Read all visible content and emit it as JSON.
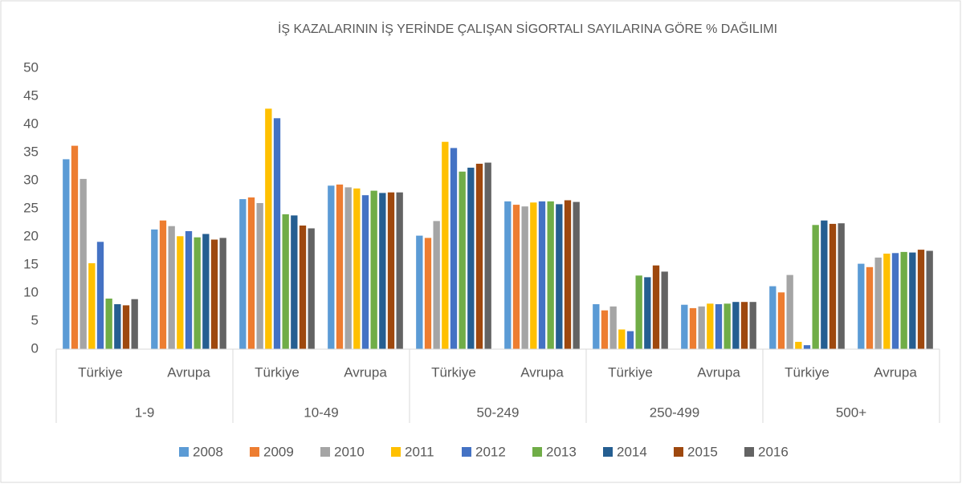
{
  "chart_data": {
    "type": "bar",
    "title": "İŞ KAZALARININ İŞ YERİNDE ÇALIŞAN SİGORTALI SAYILARINA GÖRE % DAĞILIMI",
    "groups": [
      "1-9",
      "10-49",
      "50-249",
      "250-499",
      "500+"
    ],
    "categories": [
      "Türkiye",
      "Avrupa",
      "Türkiye",
      "Avrupa",
      "Türkiye",
      "Avrupa",
      "Türkiye",
      "Avrupa",
      "Türkiye",
      "Avrupa"
    ],
    "series": [
      {
        "name": "2008",
        "color": "#5b9bd5",
        "values": [
          33.8,
          21.3,
          26.7,
          29.1,
          20.2,
          26.3,
          8.0,
          7.9,
          11.2,
          15.2
        ]
      },
      {
        "name": "2009",
        "color": "#ed7d31",
        "values": [
          36.2,
          22.9,
          27.0,
          29.3,
          19.8,
          25.7,
          6.9,
          7.3,
          10.1,
          14.6
        ]
      },
      {
        "name": "2010",
        "color": "#a5a5a5",
        "values": [
          30.3,
          21.9,
          26.0,
          28.8,
          22.8,
          25.4,
          7.6,
          7.6,
          13.2,
          16.3
        ]
      },
      {
        "name": "2011",
        "color": "#ffc000",
        "values": [
          15.3,
          20.1,
          42.8,
          28.6,
          36.9,
          26.1,
          3.5,
          8.1,
          1.3,
          17.0
        ]
      },
      {
        "name": "2012",
        "color": "#4472c4",
        "values": [
          19.1,
          21.0,
          41.1,
          27.4,
          35.8,
          26.3,
          3.2,
          8.0,
          0.7,
          17.1
        ]
      },
      {
        "name": "2013",
        "color": "#70ad47",
        "values": [
          9.0,
          19.9,
          24.0,
          28.2,
          31.6,
          26.3,
          13.1,
          8.1,
          22.1,
          17.3
        ]
      },
      {
        "name": "2014",
        "color": "#255e91",
        "values": [
          8.0,
          20.5,
          23.8,
          27.8,
          32.3,
          25.8,
          12.8,
          8.4,
          22.9,
          17.2
        ]
      },
      {
        "name": "2015",
        "color": "#9e480e",
        "values": [
          7.8,
          19.5,
          22.0,
          27.9,
          33.0,
          26.5,
          14.9,
          8.4,
          22.3,
          17.7
        ]
      },
      {
        "name": "2016",
        "color": "#636363",
        "values": [
          8.9,
          19.8,
          21.5,
          27.9,
          33.2,
          26.2,
          13.8,
          8.4,
          22.4,
          17.5
        ]
      }
    ],
    "ylim": [
      0,
      50
    ],
    "yticks": [
      0,
      5,
      10,
      15,
      20,
      25,
      30,
      35,
      40,
      45,
      50
    ],
    "grid": false,
    "legend": "bottom"
  }
}
